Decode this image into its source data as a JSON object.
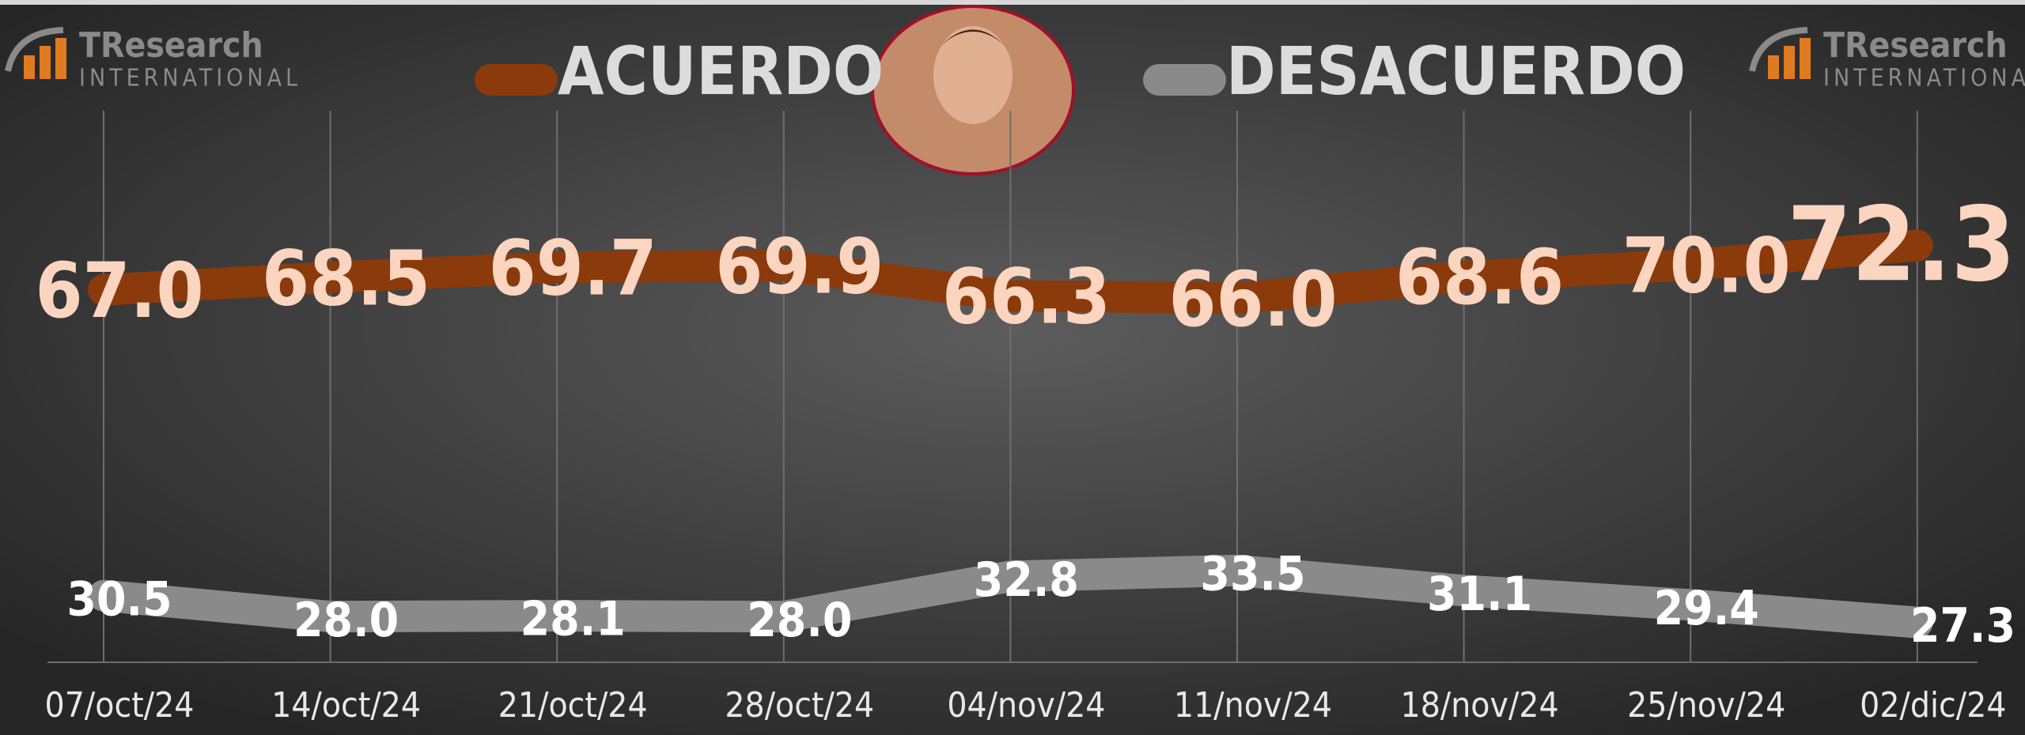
{
  "logo": {
    "name": "TResearch",
    "subtitle": "INTERNATIONAL"
  },
  "chart_data": {
    "type": "line",
    "categories": [
      "07/oct/24",
      "14/oct/24",
      "21/oct/24",
      "28/oct/24",
      "04/nov/24",
      "11/nov/24",
      "18/nov/24",
      "25/nov/24",
      "02/dic/24"
    ],
    "series": [
      {
        "name": "ACUERDO",
        "color": "#8b3a0c",
        "values": [
          67.0,
          68.5,
          69.7,
          69.9,
          66.3,
          66.0,
          68.6,
          70.0,
          72.3
        ],
        "value_labels": [
          "67.0",
          "68.5",
          "69.7",
          "69.9",
          "66.3",
          "66.0",
          "68.6",
          "70.0",
          "72.3"
        ]
      },
      {
        "name": "DESACUERDO",
        "color": "#8a8a8a",
        "values": [
          30.5,
          28.0,
          28.1,
          28.0,
          32.8,
          33.5,
          31.1,
          29.4,
          27.3
        ],
        "value_labels": [
          "30.5",
          "28.0",
          "28.1",
          "28.0",
          "32.8",
          "33.5",
          "31.1",
          "29.4",
          "27.3"
        ]
      }
    ],
    "ylim": [
      20,
      80
    ],
    "grid": true
  }
}
